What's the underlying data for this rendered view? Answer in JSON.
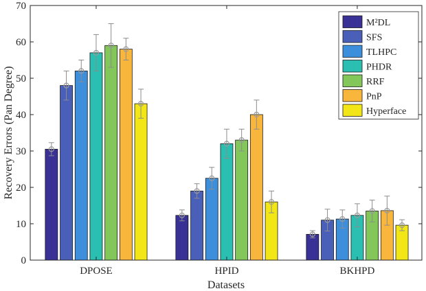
{
  "chart_data": {
    "type": "bar",
    "title": "",
    "xlabel": "Datasets",
    "ylabel": "Recovery Errors (Pan Degree)",
    "ylim": [
      0,
      70
    ],
    "yticks": [
      0,
      10,
      20,
      30,
      40,
      50,
      60,
      70
    ],
    "categories": [
      "DPOSE",
      "HPID",
      "BKHPD"
    ],
    "legend_position": "top-right",
    "grid": false,
    "series": [
      {
        "name": "M²DL",
        "color": "#3a3196",
        "values": [
          30.5,
          12.3,
          7.1
        ],
        "errors": [
          1.8,
          1.5,
          1.0
        ]
      },
      {
        "name": "SFS",
        "color": "#4a5fb8",
        "values": [
          48,
          19,
          11
        ],
        "errors": [
          4,
          2,
          3
        ]
      },
      {
        "name": "TLHPC",
        "color": "#3d8fdc",
        "values": [
          52,
          22.5,
          11.3
        ],
        "errors": [
          3,
          3,
          2.5
        ]
      },
      {
        "name": "PHDR",
        "color": "#2bbfb1",
        "values": [
          57,
          32,
          12.3
        ],
        "errors": [
          5,
          4,
          3.2
        ]
      },
      {
        "name": "RRF",
        "color": "#83c75a",
        "values": [
          59,
          33,
          13.5
        ],
        "errors": [
          6,
          3,
          3
        ]
      },
      {
        "name": "PnP",
        "color": "#f9b63d",
        "values": [
          58,
          40,
          13.6
        ],
        "errors": [
          3,
          4,
          4
        ]
      },
      {
        "name": "Hyperface",
        "color": "#f2e617",
        "values": [
          43,
          16,
          9.6
        ],
        "errors": [
          4,
          3,
          1.5
        ]
      }
    ]
  }
}
